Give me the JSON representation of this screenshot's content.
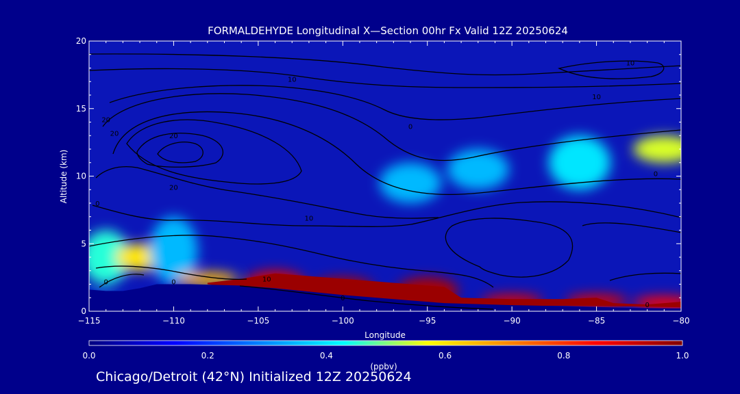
{
  "caption": "Chicago/Detroit (42°N) Initialized 12Z 20250624",
  "chart_data": {
    "type": "heatmap",
    "title": "FORMALDEHYDE Longitudinal X—Section 00hr  Fx Valid 12Z 20250624",
    "xlabel": "Longitude",
    "ylabel": "Altitude (km)",
    "xlim": [
      -115,
      -80
    ],
    "ylim": [
      0,
      20
    ],
    "x_ticks": [
      -115,
      -110,
      -105,
      -100,
      -95,
      -90,
      -85,
      -80
    ],
    "x_tick_labels": [
      "−115",
      "−110",
      "−105",
      "−100",
      "−95",
      "−90",
      "−85",
      "−80"
    ],
    "y_ticks": [
      0,
      5,
      10,
      15,
      20
    ],
    "y_tick_labels": [
      "0",
      "5",
      "10",
      "15",
      "20"
    ],
    "colorbar": {
      "label": "(ppbv)",
      "range": [
        0.0,
        1.0
      ],
      "ticks": [
        0.0,
        0.2,
        0.4,
        0.6,
        0.8,
        1.0
      ],
      "tick_labels": [
        "0.0",
        "0.2",
        "0.4",
        "0.6",
        "0.8",
        "1.0"
      ],
      "colormap": [
        "#000080",
        "#0000ff",
        "#0080ff",
        "#00ffff",
        "#ffff00",
        "#ff8000",
        "#ff0000",
        "#800000"
      ]
    },
    "field": [
      {
        "lon": -115,
        "alt_min": 0,
        "alt_max": 1.5,
        "value": 0.1
      },
      {
        "lon": -114,
        "alt_min": 2,
        "alt_max": 6,
        "value": 0.45
      },
      {
        "lon": -112,
        "alt_min": 3,
        "alt_max": 5,
        "value": 0.6
      },
      {
        "lon": -110,
        "alt_min": 2,
        "alt_max": 7,
        "value": 0.35
      },
      {
        "lon": -108,
        "alt_min": 2,
        "alt_max": 2.8,
        "value": 0.65
      },
      {
        "lon": -104,
        "alt_min": 1,
        "alt_max": 3,
        "value": 0.9
      },
      {
        "lon": -100,
        "alt_min": 1,
        "alt_max": 2.5,
        "value": 0.95
      },
      {
        "lon": -95,
        "alt_min": 0.5,
        "alt_max": 2.5,
        "value": 0.95
      },
      {
        "lon": -90,
        "alt_min": 0.5,
        "alt_max": 1,
        "value": 0.9
      },
      {
        "lon": -85,
        "alt_min": 0.5,
        "alt_max": 1,
        "value": 0.9
      },
      {
        "lon": -81,
        "alt_min": 0.4,
        "alt_max": 0.8,
        "value": 0.85
      },
      {
        "lon": -96,
        "alt_min": 8,
        "alt_max": 11,
        "value": 0.35
      },
      {
        "lon": -92,
        "alt_min": 9,
        "alt_max": 12,
        "value": 0.35
      },
      {
        "lon": -86,
        "alt_min": 9,
        "alt_max": 13,
        "value": 0.4
      },
      {
        "lon": -81,
        "alt_min": 11,
        "alt_max": 13,
        "value": 0.55
      }
    ],
    "contour_labels": [
      {
        "lon": -114,
        "alt": 2,
        "text": "0"
      },
      {
        "lon": -110,
        "alt": 2,
        "text": "0"
      },
      {
        "lon": -104.5,
        "alt": 2.2,
        "text": "10"
      },
      {
        "lon": -100,
        "alt": 0.8,
        "text": "0"
      },
      {
        "lon": -82,
        "alt": 0.3,
        "text": "0"
      },
      {
        "lon": -110,
        "alt": 9,
        "text": "20"
      },
      {
        "lon": -102,
        "alt": 6.7,
        "text": "10"
      },
      {
        "lon": -114.5,
        "alt": 7.8,
        "text": "0"
      },
      {
        "lon": -114,
        "alt": 14,
        "text": "20"
      },
      {
        "lon": -113.5,
        "alt": 13,
        "text": "20"
      },
      {
        "lon": -110,
        "alt": 12.8,
        "text": "20"
      },
      {
        "lon": -103,
        "alt": 17,
        "text": "10"
      },
      {
        "lon": -96,
        "alt": 13.5,
        "text": "0"
      },
      {
        "lon": -85,
        "alt": 15.7,
        "text": "10"
      },
      {
        "lon": -81.5,
        "alt": 10,
        "text": "0"
      },
      {
        "lon": -83,
        "alt": 18.2,
        "text": "10"
      }
    ]
  }
}
